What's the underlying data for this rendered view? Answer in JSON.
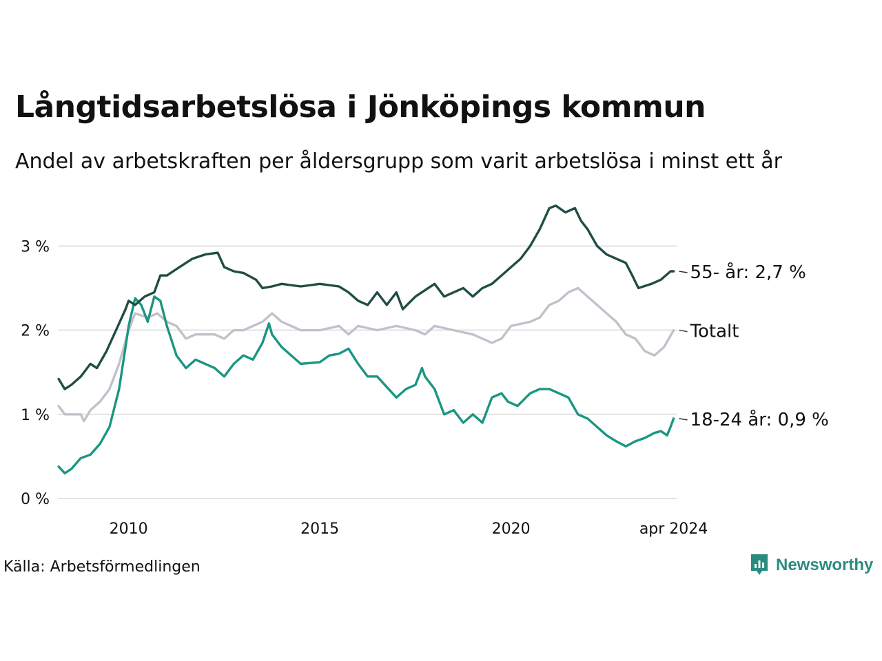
{
  "header": {
    "title": "Långtidsarbetslösa i Jönköpings kommun",
    "subtitle": "Andel av arbetskraften per åldersgrupp som varit arbetslösa i minst ett år"
  },
  "footer": {
    "source": "Källa: Arbetsförmedlingen",
    "brand": "Newsworthy"
  },
  "colors": {
    "series_55": "#1f4d45",
    "series_total": "#c3c0cc",
    "series_18_24": "#1a9682",
    "grid": "#e3e3e3",
    "brand": "#2a8c7f"
  },
  "chart_data": {
    "type": "line",
    "title": "Långtidsarbetslösa i Jönköpings kommun",
    "subtitle": "Andel av arbetskraften per åldersgrupp som varit arbetslösa i minst ett år",
    "xlabel": "",
    "ylabel": "",
    "xlim": [
      2008.15,
      2024.33
    ],
    "ylim": [
      0,
      3.6
    ],
    "grid": true,
    "y_ticks": [
      {
        "value": 0,
        "label": "0 %"
      },
      {
        "value": 1,
        "label": "1 %"
      },
      {
        "value": 2,
        "label": "2 %"
      },
      {
        "value": 3,
        "label": "3 %"
      }
    ],
    "x_ticks": [
      {
        "value": 2010,
        "label": "2010"
      },
      {
        "value": 2015,
        "label": "2015"
      },
      {
        "value": 2020,
        "label": "2020"
      },
      {
        "value": 2024.25,
        "label": "apr 2024"
      }
    ],
    "series": [
      {
        "name": "55- år",
        "end_label": "55- år: 2,7 %",
        "x": [
          2008.17,
          2008.33,
          2008.5,
          2008.75,
          2009.0,
          2009.17,
          2009.42,
          2009.67,
          2009.92,
          2010.0,
          2010.17,
          2010.42,
          2010.67,
          2010.83,
          2011.0,
          2011.33,
          2011.67,
          2012.0,
          2012.33,
          2012.5,
          2012.75,
          2013.0,
          2013.33,
          2013.5,
          2013.75,
          2014.0,
          2014.5,
          2015.0,
          2015.5,
          2015.75,
          2016.0,
          2016.25,
          2016.5,
          2016.75,
          2017.0,
          2017.17,
          2017.5,
          2018.0,
          2018.25,
          2018.5,
          2018.75,
          2019.0,
          2019.25,
          2019.5,
          2019.75,
          2020.0,
          2020.25,
          2020.5,
          2020.75,
          2021.0,
          2021.17,
          2021.42,
          2021.67,
          2021.83,
          2022.0,
          2022.25,
          2022.5,
          2022.75,
          2023.0,
          2023.17,
          2023.33,
          2023.67,
          2023.92,
          2024.17,
          2024.25
        ],
        "y": [
          1.42,
          1.3,
          1.35,
          1.45,
          1.6,
          1.55,
          1.75,
          2.0,
          2.25,
          2.35,
          2.3,
          2.4,
          2.45,
          2.65,
          2.65,
          2.75,
          2.85,
          2.9,
          2.92,
          2.75,
          2.7,
          2.68,
          2.6,
          2.5,
          2.52,
          2.55,
          2.52,
          2.55,
          2.52,
          2.45,
          2.35,
          2.3,
          2.45,
          2.3,
          2.45,
          2.25,
          2.4,
          2.55,
          2.4,
          2.45,
          2.5,
          2.4,
          2.5,
          2.55,
          2.65,
          2.75,
          2.85,
          3.0,
          3.2,
          3.45,
          3.48,
          3.4,
          3.45,
          3.3,
          3.2,
          3.0,
          2.9,
          2.85,
          2.8,
          2.65,
          2.5,
          2.55,
          2.6,
          2.7,
          2.7
        ]
      },
      {
        "name": "Totalt",
        "end_label": "Totalt",
        "x": [
          2008.17,
          2008.33,
          2008.75,
          2008.83,
          2009.0,
          2009.25,
          2009.5,
          2009.75,
          2010.0,
          2010.17,
          2010.5,
          2010.75,
          2011.0,
          2011.25,
          2011.5,
          2011.75,
          2012.0,
          2012.25,
          2012.5,
          2012.75,
          2013.0,
          2013.5,
          2013.75,
          2014.0,
          2014.5,
          2015.0,
          2015.5,
          2015.75,
          2016.0,
          2016.5,
          2017.0,
          2017.5,
          2017.75,
          2018.0,
          2018.5,
          2019.0,
          2019.5,
          2019.75,
          2020.0,
          2020.5,
          2020.75,
          2021.0,
          2021.25,
          2021.5,
          2021.75,
          2022.0,
          2022.25,
          2022.5,
          2022.75,
          2023.0,
          2023.25,
          2023.5,
          2023.75,
          2024.0,
          2024.25
        ],
        "y": [
          1.1,
          1.0,
          1.0,
          0.92,
          1.05,
          1.15,
          1.3,
          1.6,
          2.0,
          2.2,
          2.15,
          2.2,
          2.1,
          2.05,
          1.9,
          1.95,
          1.95,
          1.95,
          1.9,
          2.0,
          2.0,
          2.1,
          2.2,
          2.1,
          2.0,
          2.0,
          2.05,
          1.95,
          2.05,
          2.0,
          2.05,
          2.0,
          1.95,
          2.05,
          2.0,
          1.95,
          1.85,
          1.9,
          2.05,
          2.1,
          2.15,
          2.3,
          2.35,
          2.45,
          2.5,
          2.4,
          2.3,
          2.2,
          2.1,
          1.95,
          1.9,
          1.75,
          1.7,
          1.8,
          2.0
        ]
      },
      {
        "name": "18-24 år",
        "end_label": "18-24 år: 0,9 %",
        "x": [
          2008.17,
          2008.33,
          2008.5,
          2008.75,
          2009.0,
          2009.25,
          2009.5,
          2009.75,
          2009.92,
          2010.0,
          2010.17,
          2010.33,
          2010.5,
          2010.67,
          2010.83,
          2011.0,
          2011.25,
          2011.5,
          2011.75,
          2012.0,
          2012.25,
          2012.5,
          2012.75,
          2013.0,
          2013.25,
          2013.5,
          2013.67,
          2013.75,
          2014.0,
          2014.5,
          2015.0,
          2015.25,
          2015.5,
          2015.75,
          2016.0,
          2016.25,
          2016.5,
          2017.0,
          2017.25,
          2017.5,
          2017.67,
          2017.75,
          2018.0,
          2018.25,
          2018.5,
          2018.75,
          2019.0,
          2019.25,
          2019.5,
          2019.75,
          2019.92,
          2020.17,
          2020.5,
          2020.75,
          2021.0,
          2021.25,
          2021.5,
          2021.75,
          2022.0,
          2022.25,
          2022.5,
          2022.75,
          2023.0,
          2023.25,
          2023.5,
          2023.75,
          2023.92,
          2024.08,
          2024.17,
          2024.25
        ],
        "y": [
          0.38,
          0.3,
          0.35,
          0.48,
          0.52,
          0.65,
          0.85,
          1.3,
          1.8,
          2.05,
          2.38,
          2.3,
          2.1,
          2.4,
          2.35,
          2.05,
          1.7,
          1.55,
          1.65,
          1.6,
          1.55,
          1.45,
          1.6,
          1.7,
          1.65,
          1.85,
          2.08,
          1.95,
          1.8,
          1.6,
          1.62,
          1.7,
          1.72,
          1.78,
          1.6,
          1.45,
          1.45,
          1.2,
          1.3,
          1.35,
          1.55,
          1.45,
          1.3,
          1.0,
          1.05,
          0.9,
          1.0,
          0.9,
          1.2,
          1.25,
          1.15,
          1.1,
          1.25,
          1.3,
          1.3,
          1.25,
          1.2,
          1.0,
          0.95,
          0.85,
          0.75,
          0.68,
          0.62,
          0.68,
          0.72,
          0.78,
          0.8,
          0.75,
          0.85,
          0.95
        ]
      }
    ]
  }
}
